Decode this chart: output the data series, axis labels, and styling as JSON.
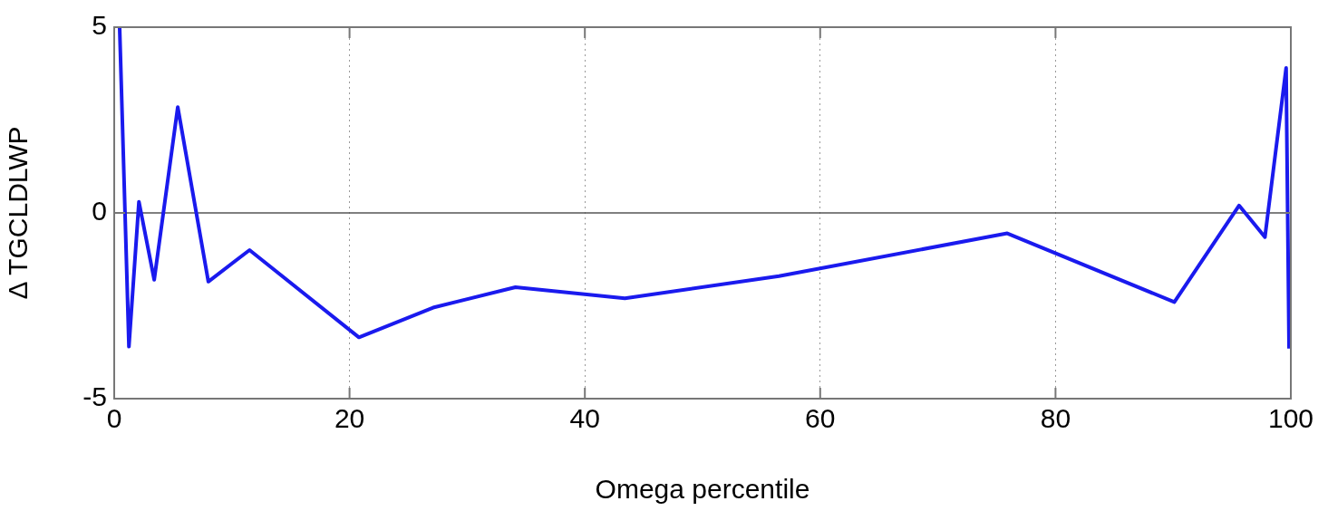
{
  "chart_data": {
    "type": "line",
    "xlabel": "Omega percentile",
    "ylabel": "Δ TGCLDLWP",
    "x": [
      0.46,
      1.25,
      2.1,
      3.4,
      5.4,
      8.0,
      11.5,
      20.8,
      27.1,
      34.1,
      43.4,
      56.5,
      75.9,
      90.1,
      95.6,
      97.8,
      99.6,
      99.85
    ],
    "series": [
      {
        "color": "#1a1aee",
        "values": [
          5.0,
          -3.6,
          0.3,
          -1.8,
          2.85,
          -1.85,
          -1.0,
          -3.35,
          -2.55,
          -2.0,
          -2.3,
          -1.7,
          -0.55,
          -2.4,
          0.2,
          -0.65,
          3.9,
          -3.65
        ]
      }
    ],
    "xlim": [
      0,
      100
    ],
    "xticks": [
      0,
      20,
      40,
      60,
      80,
      100
    ],
    "ylim": [
      -5,
      5
    ],
    "yticks": [
      -5,
      0,
      5
    ],
    "grid": "x",
    "legend": false,
    "marker": "none",
    "line_style": "solid",
    "ref_lines": [
      {
        "axis": "y",
        "value": 0,
        "color": "#555555",
        "line_style": "solid"
      }
    ]
  }
}
